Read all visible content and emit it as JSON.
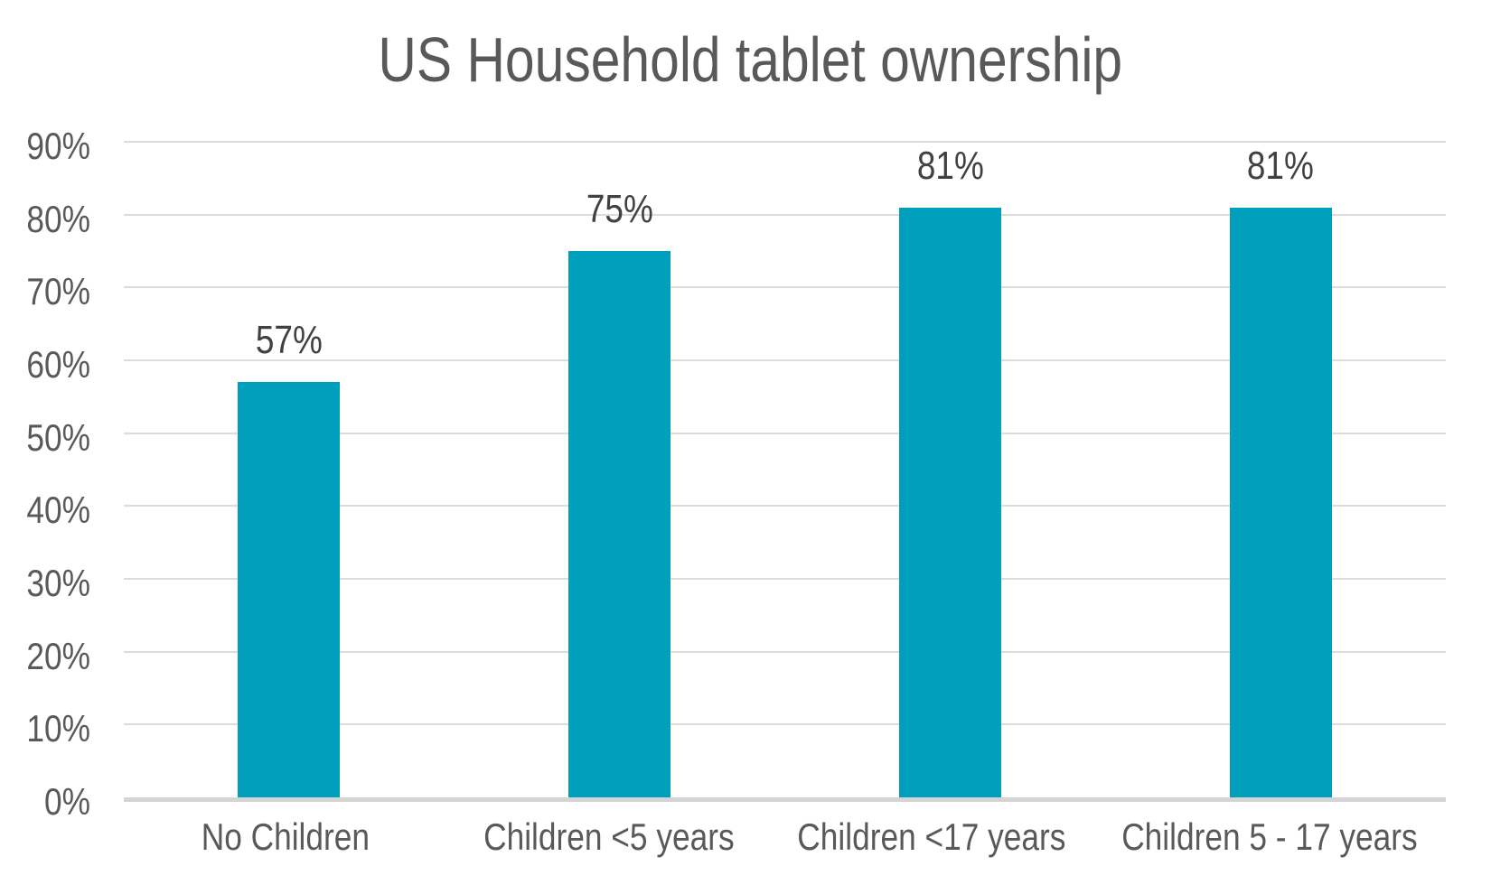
{
  "title": "US Household tablet ownership",
  "chart_data": {
    "type": "bar",
    "title": "US Household tablet ownership",
    "categories": [
      "No Children",
      "Children <5 years",
      "Children <17 years",
      "Children 5 - 17 years"
    ],
    "values": [
      57,
      75,
      81,
      81
    ],
    "data_labels": [
      "57%",
      "75%",
      "81%",
      "81%"
    ],
    "y_ticks": [
      "0%",
      "10%",
      "20%",
      "30%",
      "40%",
      "50%",
      "60%",
      "70%",
      "80%",
      "90%"
    ],
    "ylim": [
      0,
      90
    ],
    "y_tick_step": 10,
    "xlabel": "",
    "ylabel": "",
    "grid": "horizontal",
    "legend": "none",
    "colors": {
      "bar": "#00A0BD",
      "title_text": "#595959",
      "axis_text": "#595959",
      "data_label_text": "#414141",
      "gridline": "#dcdcdc",
      "baseline": "#d4d4d4",
      "background": "#ffffff"
    }
  }
}
